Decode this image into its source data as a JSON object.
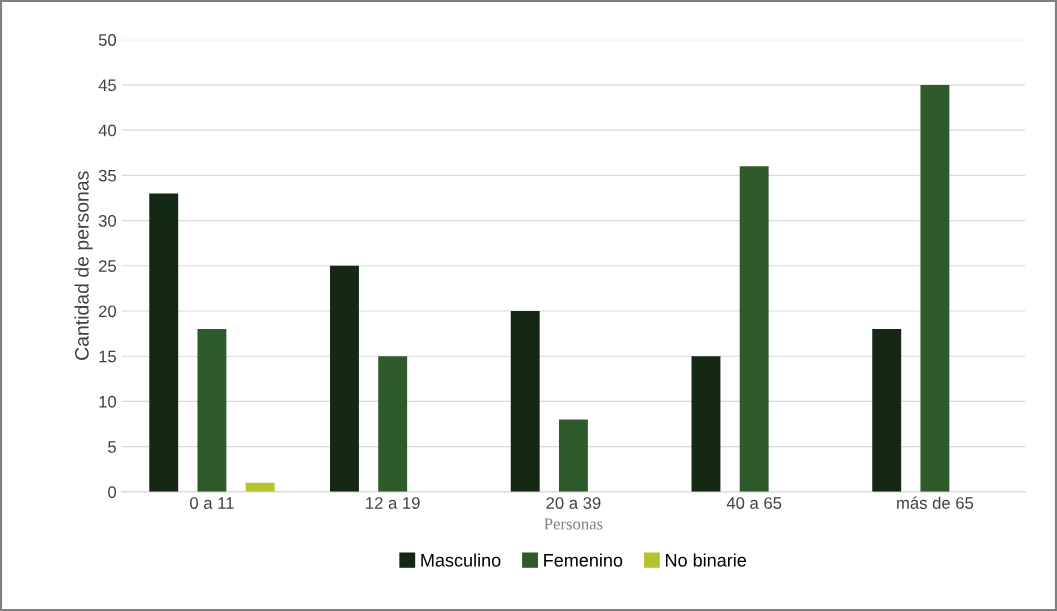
{
  "chart_data": {
    "type": "bar",
    "xlabel": "Personas",
    "ylabel": "Cantidad de personas",
    "categories": [
      "0 a 11",
      "12 a 19",
      "20 a 39",
      "40 a 65",
      "más de 65"
    ],
    "series": [
      {
        "name": "Masculino",
        "color": "#142814",
        "values": [
          33,
          25,
          20,
          15,
          18
        ]
      },
      {
        "name": "Femenino",
        "color": "#2f5a2c",
        "values": [
          18,
          15,
          8,
          36,
          45
        ]
      },
      {
        "name": "No binarie",
        "color": "#b5c42e",
        "values": [
          1,
          null,
          null,
          null,
          null
        ]
      }
    ],
    "ylim": [
      0,
      50
    ],
    "yticks": [
      0,
      5,
      10,
      15,
      20,
      25,
      30,
      35,
      40,
      45,
      50
    ],
    "grid": "y",
    "legend": "bottom"
  }
}
